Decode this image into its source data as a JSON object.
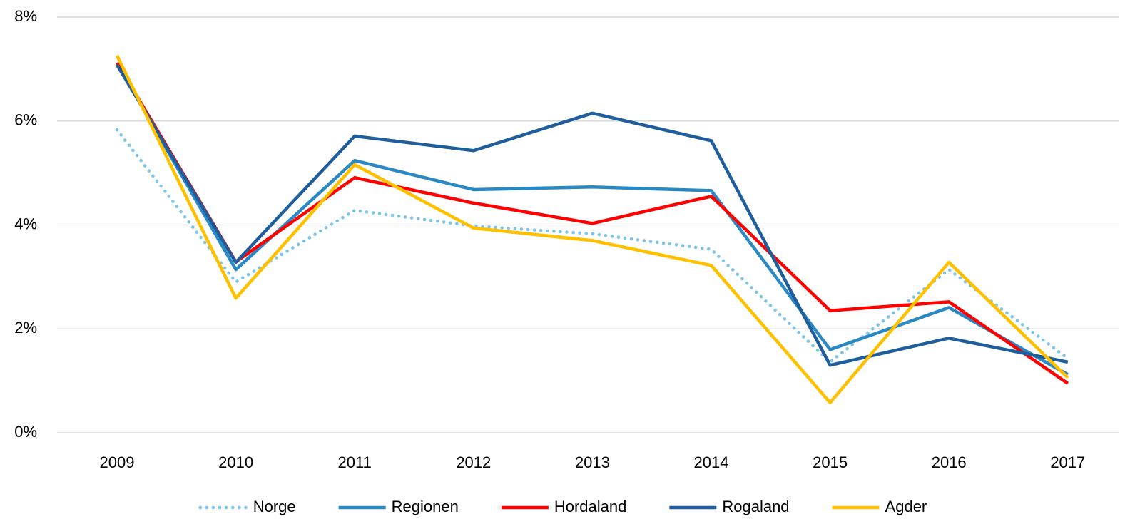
{
  "chart_data": {
    "type": "line",
    "categories": [
      "2009",
      "2010",
      "2011",
      "2012",
      "2013",
      "2014",
      "2015",
      "2016",
      "2017"
    ],
    "series": [
      {
        "name": "Norge",
        "color": "#7cc4e8",
        "dotted": true,
        "values": [
          5.83,
          2.9,
          4.28,
          3.98,
          3.83,
          3.53,
          1.36,
          3.14,
          1.43
        ]
      },
      {
        "name": "Regionen",
        "color": "#2a88c4",
        "values": [
          7.12,
          3.14,
          5.24,
          4.68,
          4.73,
          4.66,
          1.6,
          2.41,
          1.12
        ]
      },
      {
        "name": "Hordaland",
        "color": "#ff0000",
        "values": [
          7.12,
          3.29,
          4.91,
          4.42,
          4.03,
          4.55,
          2.35,
          2.52,
          0.95
        ]
      },
      {
        "name": "Rogaland",
        "color": "#1f5e9c",
        "values": [
          7.08,
          3.28,
          5.71,
          5.43,
          6.15,
          5.62,
          1.3,
          1.82,
          1.36
        ]
      },
      {
        "name": "Agder",
        "color": "#ffc000",
        "values": [
          7.26,
          2.59,
          5.16,
          3.94,
          3.7,
          3.22,
          0.58,
          3.28,
          1.06
        ]
      }
    ],
    "ylim": [
      0,
      8
    ],
    "yticks": [
      {
        "value": 0,
        "label": "0%"
      },
      {
        "value": 2,
        "label": "2%"
      },
      {
        "value": 4,
        "label": "4%"
      },
      {
        "value": 6,
        "label": "6%"
      },
      {
        "value": 8,
        "label": "8%"
      }
    ],
    "grid": true,
    "legend": "bottom"
  }
}
